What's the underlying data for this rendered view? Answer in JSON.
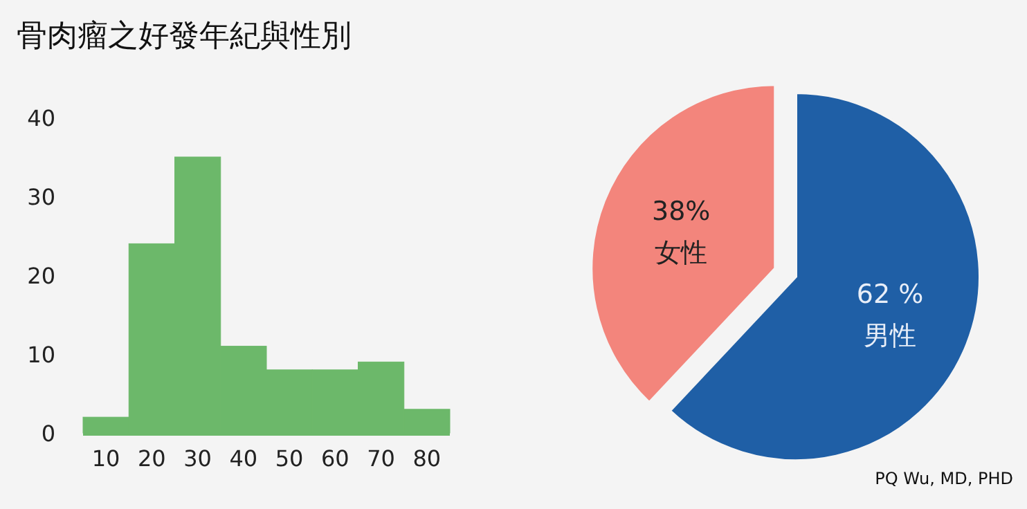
{
  "chart_data": [
    {
      "type": "histogram",
      "title": "骨肉瘤之好發年紀與性別",
      "bins": [
        5,
        15,
        25,
        35,
        45,
        55,
        65,
        75,
        85
      ],
      "values": [
        2,
        24,
        35,
        11,
        8,
        8,
        9,
        3
      ],
      "color": "#6cb86a",
      "xlim": [
        5,
        85
      ],
      "xticks": [
        10,
        20,
        30,
        40,
        50,
        60,
        70,
        80
      ],
      "ylim": [
        0,
        40
      ],
      "yticks": [
        0,
        10,
        20,
        30,
        40
      ],
      "grid": false
    },
    {
      "type": "pie",
      "categories": [
        "女性",
        "男性"
      ],
      "values": [
        38,
        62
      ],
      "colors": [
        "#f3857c",
        "#1f5fa6"
      ],
      "value_labels": [
        "38%",
        "62 %"
      ],
      "annotations": [
        "PQ Wu, MD, PHD"
      ]
    }
  ]
}
